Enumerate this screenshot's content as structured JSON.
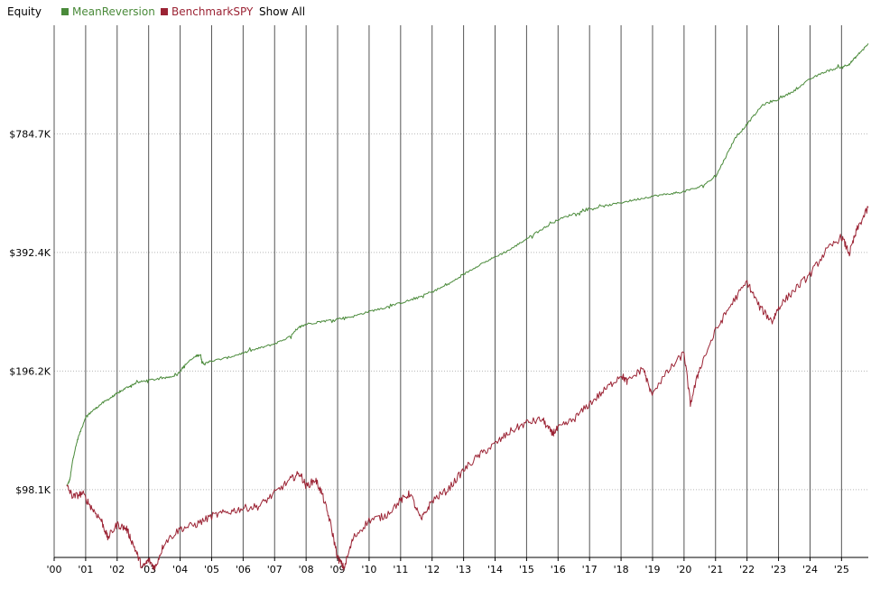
{
  "header": {
    "title": "Equity",
    "show_all_label": "Show All"
  },
  "chart_data": {
    "type": "line",
    "title": "Equity",
    "y_scale": "log",
    "ylim": [
      66000,
      1480000
    ],
    "y_ticks": [
      {
        "value": 98100,
        "label": "$98.1K"
      },
      {
        "value": 196200,
        "label": "$196.2K"
      },
      {
        "value": 392400,
        "label": "$392.4K"
      },
      {
        "value": 784700,
        "label": "$784.7K"
      }
    ],
    "xlim": [
      2000.0,
      2025.85
    ],
    "x_ticks": [
      {
        "value": 2000,
        "label": "'00"
      },
      {
        "value": 2001,
        "label": "'01"
      },
      {
        "value": 2002,
        "label": "'02"
      },
      {
        "value": 2003,
        "label": "'03"
      },
      {
        "value": 2004,
        "label": "'04"
      },
      {
        "value": 2005,
        "label": "'05"
      },
      {
        "value": 2006,
        "label": "'06"
      },
      {
        "value": 2007,
        "label": "'07"
      },
      {
        "value": 2008,
        "label": "'08"
      },
      {
        "value": 2009,
        "label": "'09"
      },
      {
        "value": 2010,
        "label": "'10"
      },
      {
        "value": 2011,
        "label": "'11"
      },
      {
        "value": 2012,
        "label": "'12"
      },
      {
        "value": 2013,
        "label": "'13"
      },
      {
        "value": 2014,
        "label": "'14"
      },
      {
        "value": 2015,
        "label": "'15"
      },
      {
        "value": 2016,
        "label": "'16"
      },
      {
        "value": 2017,
        "label": "'17"
      },
      {
        "value": 2018,
        "label": "'18"
      },
      {
        "value": 2019,
        "label": "'19"
      },
      {
        "value": 2020,
        "label": "'20"
      },
      {
        "value": 2021,
        "label": "'21"
      },
      {
        "value": 2022,
        "label": "'22"
      },
      {
        "value": 2023,
        "label": "'23"
      },
      {
        "value": 2024,
        "label": "'24"
      },
      {
        "value": 2025,
        "label": "'25"
      }
    ],
    "grid": {
      "vertical": true,
      "horizontal_dotted": true
    },
    "legend_placement": "top-left",
    "series": [
      {
        "name": "MeanReversion",
        "color": "#4a8a3a",
        "points": [
          [
            2000.4,
            100000
          ],
          [
            2000.5,
            104000
          ],
          [
            2000.6,
            118000
          ],
          [
            2000.75,
            132000
          ],
          [
            2001.0,
            150000
          ],
          [
            2001.2,
            155000
          ],
          [
            2001.5,
            162000
          ],
          [
            2001.8,
            168000
          ],
          [
            2002.0,
            172000
          ],
          [
            2002.3,
            178000
          ],
          [
            2002.6,
            183000
          ],
          [
            2003.0,
            186000
          ],
          [
            2003.5,
            188000
          ],
          [
            2003.9,
            192000
          ],
          [
            2004.2,
            205000
          ],
          [
            2004.5,
            214000
          ],
          [
            2004.65,
            216000
          ],
          [
            2004.7,
            205000
          ],
          [
            2005.0,
            208000
          ],
          [
            2005.5,
            212000
          ],
          [
            2006.0,
            218000
          ],
          [
            2006.5,
            224000
          ],
          [
            2007.0,
            230000
          ],
          [
            2007.5,
            240000
          ],
          [
            2007.8,
            254000
          ],
          [
            2008.0,
            258000
          ],
          [
            2008.5,
            262000
          ],
          [
            2009.0,
            266000
          ],
          [
            2009.5,
            270000
          ],
          [
            2010.0,
            278000
          ],
          [
            2010.5,
            284000
          ],
          [
            2011.0,
            292000
          ],
          [
            2011.5,
            300000
          ],
          [
            2012.0,
            312000
          ],
          [
            2012.5,
            325000
          ],
          [
            2013.0,
            345000
          ],
          [
            2013.5,
            365000
          ],
          [
            2014.0,
            382000
          ],
          [
            2014.5,
            400000
          ],
          [
            2015.0,
            425000
          ],
          [
            2015.5,
            450000
          ],
          [
            2016.0,
            475000
          ],
          [
            2016.5,
            492000
          ],
          [
            2017.0,
            505000
          ],
          [
            2017.5,
            515000
          ],
          [
            2018.0,
            525000
          ],
          [
            2018.5,
            535000
          ],
          [
            2019.0,
            545000
          ],
          [
            2019.5,
            552000
          ],
          [
            2020.0,
            560000
          ],
          [
            2020.5,
            575000
          ],
          [
            2021.0,
            610000
          ],
          [
            2021.3,
            680000
          ],
          [
            2021.6,
            760000
          ],
          [
            2022.0,
            830000
          ],
          [
            2022.5,
            930000
          ],
          [
            2023.0,
            960000
          ],
          [
            2023.5,
            1010000
          ],
          [
            2024.0,
            1080000
          ],
          [
            2024.5,
            1130000
          ],
          [
            2025.0,
            1160000
          ],
          [
            2025.25,
            1180000
          ],
          [
            2025.5,
            1240000
          ],
          [
            2025.85,
            1330000
          ]
        ]
      },
      {
        "name": "BenchmarkSPY",
        "color": "#9b2334",
        "points": [
          [
            2000.4,
            100000
          ],
          [
            2000.6,
            94000
          ],
          [
            2000.9,
            96000
          ],
          [
            2001.2,
            88000
          ],
          [
            2001.5,
            82000
          ],
          [
            2001.7,
            74000
          ],
          [
            2002.0,
            80000
          ],
          [
            2002.3,
            78000
          ],
          [
            2002.55,
            70000
          ],
          [
            2002.8,
            62000
          ],
          [
            2003.0,
            65000
          ],
          [
            2003.2,
            62000
          ],
          [
            2003.5,
            72000
          ],
          [
            2004.0,
            78000
          ],
          [
            2004.5,
            80000
          ],
          [
            2005.0,
            84000
          ],
          [
            2005.5,
            86000
          ],
          [
            2006.0,
            88000
          ],
          [
            2006.5,
            89000
          ],
          [
            2007.0,
            96000
          ],
          [
            2007.5,
            104000
          ],
          [
            2007.8,
            108000
          ],
          [
            2008.0,
            100000
          ],
          [
            2008.3,
            104000
          ],
          [
            2008.5,
            96000
          ],
          [
            2008.75,
            82000
          ],
          [
            2009.0,
            66000
          ],
          [
            2009.2,
            62000
          ],
          [
            2009.5,
            74000
          ],
          [
            2010.0,
            82000
          ],
          [
            2010.5,
            84000
          ],
          [
            2011.0,
            92000
          ],
          [
            2011.3,
            96000
          ],
          [
            2011.65,
            82000
          ],
          [
            2012.0,
            92000
          ],
          [
            2012.5,
            98000
          ],
          [
            2013.0,
            110000
          ],
          [
            2013.5,
            120000
          ],
          [
            2014.0,
            128000
          ],
          [
            2014.5,
            138000
          ],
          [
            2015.0,
            145000
          ],
          [
            2015.5,
            148000
          ],
          [
            2015.8,
            136000
          ],
          [
            2016.0,
            140000
          ],
          [
            2016.5,
            148000
          ],
          [
            2017.0,
            162000
          ],
          [
            2017.5,
            176000
          ],
          [
            2018.0,
            192000
          ],
          [
            2018.2,
            184000
          ],
          [
            2018.7,
            200000
          ],
          [
            2018.95,
            172000
          ],
          [
            2019.5,
            196000
          ],
          [
            2020.0,
            218000
          ],
          [
            2020.2,
            162000
          ],
          [
            2020.5,
            200000
          ],
          [
            2021.0,
            248000
          ],
          [
            2021.5,
            290000
          ],
          [
            2022.0,
            330000
          ],
          [
            2022.4,
            285000
          ],
          [
            2022.8,
            262000
          ],
          [
            2023.0,
            285000
          ],
          [
            2023.5,
            315000
          ],
          [
            2024.0,
            345000
          ],
          [
            2024.5,
            395000
          ],
          [
            2025.0,
            430000
          ],
          [
            2025.25,
            390000
          ],
          [
            2025.5,
            450000
          ],
          [
            2025.85,
            510000
          ]
        ]
      }
    ]
  }
}
